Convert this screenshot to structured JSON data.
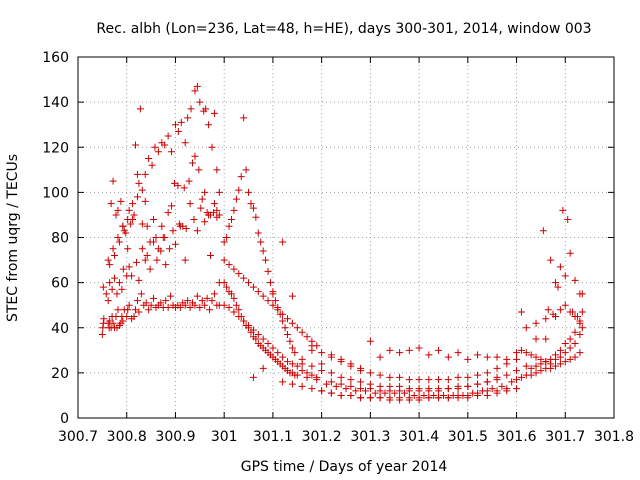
{
  "chart_data": {
    "type": "scatter",
    "title": "Rec. albh (Lon=236, Lat=48, h=HE), days 300-301, 2014, window 003",
    "xlabel": "GPS time / Days of year 2014",
    "ylabel": "STEC from uqrg / TECUs",
    "xlim": [
      300.7,
      301.8
    ],
    "ylim": [
      0,
      160
    ],
    "xticks": [
      "300.7",
      "300.8",
      "300.9",
      "301",
      "301.1",
      "301.2",
      "301.3",
      "301.4",
      "301.5",
      "301.6",
      "301.7",
      "301.8"
    ],
    "yticks": [
      "0",
      "20",
      "40",
      "60",
      "80",
      "100",
      "120",
      "140",
      "160"
    ],
    "grid": true,
    "grid_style": "dotted",
    "legend": "none",
    "marker": "plus",
    "color": "#cc0000",
    "series": [
      {
        "x": [
          300.75,
          300.751,
          300.752,
          300.753,
          300.762,
          300.764,
          300.765,
          300.768,
          300.77,
          300.772,
          300.775,
          300.778,
          300.78,
          300.782,
          300.785,
          300.788,
          300.79,
          300.792,
          300.795,
          300.8,
          300.802,
          300.805,
          300.81,
          300.815,
          300.818,
          300.822,
          300.825,
          300.83,
          300.835,
          300.84,
          300.845,
          300.85,
          300.855,
          300.86,
          300.865,
          300.87,
          300.875,
          300.88,
          300.885,
          300.89,
          300.895,
          300.9,
          300.905,
          300.91,
          300.915,
          300.92,
          300.925,
          300.93,
          300.935,
          300.94,
          300.945,
          300.95,
          300.955,
          300.96,
          300.965,
          300.97,
          300.975,
          300.98,
          300.985,
          300.99
        ],
        "y": [
          37,
          40,
          42,
          44,
          42,
          40,
          43,
          40,
          45,
          42,
          40,
          45,
          40,
          48,
          41,
          42,
          45,
          43,
          48,
          45,
          48,
          50,
          44,
          45,
          48,
          52,
          47,
          55,
          50,
          51,
          48,
          50,
          53,
          49,
          50,
          51,
          49,
          52,
          49,
          54,
          50,
          49,
          50,
          49,
          51,
          50,
          52,
          49,
          51,
          50,
          54,
          49,
          52,
          50,
          53,
          48,
          52,
          55,
          50,
          50
        ]
      },
      {
        "x": [
          300.752,
          300.758,
          300.762,
          300.765,
          300.77,
          300.775,
          300.78,
          300.785,
          300.79,
          300.793,
          300.8,
          300.805,
          300.81,
          300.82,
          300.825,
          300.832,
          300.838,
          300.842,
          300.848,
          300.855,
          300.862,
          300.87,
          300.875,
          300.88,
          300.888,
          300.895,
          300.9,
          300.908,
          300.915,
          300.92,
          300.93,
          300.938,
          300.945,
          300.952,
          300.96,
          300.965,
          300.972,
          300.98,
          300.985,
          300.99
        ],
        "y": [
          58,
          55,
          52,
          60,
          57,
          62,
          55,
          60,
          57,
          66,
          63,
          67,
          63,
          69,
          61,
          75,
          70,
          72,
          66,
          78,
          70,
          74,
          80,
          68,
          75,
          83,
          77,
          86,
          85,
          70,
          95,
          88,
          83,
          93,
          87,
          91,
          90,
          95,
          92,
          90
        ]
      },
      {
        "x": [
          300.762,
          300.765,
          300.772,
          300.775,
          300.782,
          300.785,
          300.792,
          300.795,
          300.802,
          300.805,
          300.812,
          300.815,
          300.822,
          300.825,
          300.832,
          300.838,
          300.845,
          300.852,
          300.858,
          300.865,
          300.872,
          300.878,
          300.885,
          300.892,
          300.9,
          300.906,
          300.912,
          300.92,
          300.925,
          300.932,
          300.94,
          300.945,
          300.95,
          300.958,
          300.962,
          300.968,
          300.975,
          300.98,
          300.985,
          300.99
        ],
        "y": [
          70,
          68,
          75,
          72,
          80,
          78,
          85,
          83,
          88,
          92,
          95,
          90,
          98,
          104,
          101,
          108,
          115,
          112,
          120,
          118,
          122,
          121,
          125,
          118,
          130,
          127,
          131,
          122,
          133,
          137,
          145,
          147,
          140,
          136,
          137,
          130,
          120,
          135,
          110,
          100
        ]
      },
      {
        "x": [
          300.768,
          300.772,
          300.778,
          300.782,
          300.788,
          300.792,
          300.798,
          300.802,
          300.808,
          300.812,
          300.818,
          300.822,
          300.828,
          300.832,
          300.838,
          300.842,
          300.848,
          300.855,
          300.86,
          300.865,
          300.872,
          300.878,
          300.885,
          300.892,
          300.898,
          300.905,
          300.91,
          300.918,
          300.922,
          300.928,
          300.935,
          300.94,
          300.948,
          300.955,
          300.96,
          300.968,
          300.972,
          300.978,
          300.985,
          300.99
        ],
        "y": [
          95,
          105,
          90,
          92,
          96,
          85,
          82,
          75,
          86,
          88,
          121,
          108,
          137,
          86,
          96,
          85,
          78,
          88,
          80,
          75,
          85,
          80,
          91,
          94,
          104,
          103,
          85,
          102,
          84,
          105,
          113,
          116,
          110,
          97,
          100,
          90,
          72,
          91,
          89,
          60
        ]
      },
      {
        "x": [
          301.0,
          301.005,
          301.01,
          301.015,
          301.02,
          301.025,
          301.03,
          301.035,
          301.04,
          301.045,
          301.05,
          301.055,
          301.06,
          301.065,
          301.07,
          301.075,
          301.08,
          301.085,
          301.09,
          301.095,
          301.1,
          301.105,
          301.11,
          301.115,
          301.12,
          301.125,
          301.13,
          301.135,
          301.14,
          301.145
        ],
        "y": [
          60,
          58,
          56,
          55,
          53,
          50,
          48,
          45,
          43,
          41,
          40,
          38,
          36,
          35,
          33,
          32,
          31,
          30,
          29,
          28,
          27,
          26,
          25,
          24,
          23,
          22,
          21,
          20,
          20,
          19
        ]
      },
      {
        "x": [
          301.0,
          301.005,
          301.01,
          301.015,
          301.02,
          301.025,
          301.03,
          301.035,
          301.04,
          301.045,
          301.05,
          301.055,
          301.06,
          301.065,
          301.07,
          301.075,
          301.08,
          301.085,
          301.09,
          301.095,
          301.1,
          301.105,
          301.11,
          301.115,
          301.12,
          301.125,
          301.13,
          301.135,
          301.14,
          301.145
        ],
        "y": [
          78,
          80,
          85,
          88,
          92,
          97,
          101,
          107,
          133,
          110,
          100,
          95,
          93,
          89,
          82,
          78,
          74,
          70,
          65,
          60,
          55,
          52,
          49,
          46,
          43,
          40,
          37,
          34,
          31,
          29
        ]
      },
      {
        "x": [
          301.0,
          301.01,
          301.02,
          301.03,
          301.04,
          301.05,
          301.06,
          301.07,
          301.08,
          301.09,
          301.1,
          301.11,
          301.12,
          301.13,
          301.14,
          301.15,
          301.16,
          301.17,
          301.18,
          301.19
        ],
        "y": [
          50,
          49,
          47,
          45,
          43,
          41,
          39,
          37,
          35,
          33,
          31,
          29,
          27,
          25,
          24,
          23,
          21,
          20,
          19,
          18
        ]
      },
      {
        "x": [
          301.0,
          301.01,
          301.02,
          301.03,
          301.04,
          301.05,
          301.06,
          301.07,
          301.08,
          301.09,
          301.1,
          301.11,
          301.12,
          301.13,
          301.14,
          301.15,
          301.16,
          301.17,
          301.18,
          301.19
        ],
        "y": [
          70,
          68,
          66,
          64,
          62,
          60,
          58,
          56,
          54,
          52,
          50,
          48,
          46,
          44,
          42,
          40,
          38,
          36,
          34,
          32
        ]
      },
      {
        "x": [
          301.06,
          301.08,
          301.1,
          301.12,
          301.14,
          301.16,
          301.18,
          301.2,
          301.22,
          301.24,
          301.26,
          301.28,
          301.3,
          301.32,
          301.34,
          301.36,
          301.38,
          301.4,
          301.42,
          301.44,
          301.46,
          301.48,
          301.5,
          301.52,
          301.54,
          301.56,
          301.58
        ],
        "y": [
          18,
          22,
          56,
          78,
          54,
          26,
          32,
          24,
          28,
          26,
          24,
          22,
          34,
          27,
          30,
          29,
          30,
          31,
          28,
          30,
          27,
          29,
          26,
          28,
          27,
          27,
          26
        ]
      },
      {
        "x": [
          301.12,
          301.14,
          301.16,
          301.18,
          301.2,
          301.22,
          301.24,
          301.26,
          301.28,
          301.3,
          301.32,
          301.34,
          301.36,
          301.38,
          301.4,
          301.42,
          301.44,
          301.46,
          301.48,
          301.5,
          301.52,
          301.54,
          301.56,
          301.58,
          301.6
        ],
        "y": [
          16,
          15,
          14,
          13,
          12,
          11,
          10,
          10,
          9,
          9,
          9,
          9,
          9,
          9,
          9,
          9,
          9,
          9,
          9,
          9,
          10,
          10,
          11,
          12,
          13
        ]
      },
      {
        "x": [
          301.15,
          301.17,
          301.19,
          301.21,
          301.23,
          301.25,
          301.27,
          301.29,
          301.31,
          301.33,
          301.35,
          301.37,
          301.39,
          301.41,
          301.43,
          301.45,
          301.47,
          301.49,
          301.51,
          301.53,
          301.55,
          301.57,
          301.59
        ],
        "y": [
          19,
          18,
          17,
          15,
          14,
          13,
          12,
          12,
          11,
          11,
          11,
          11,
          10,
          10,
          10,
          10,
          10,
          10,
          11,
          12,
          13,
          14,
          16
        ]
      },
      {
        "x": [
          301.16,
          301.18,
          301.2,
          301.22,
          301.24,
          301.26,
          301.28,
          301.3,
          301.32,
          301.34,
          301.36,
          301.38,
          301.4,
          301.42,
          301.44,
          301.46,
          301.48,
          301.5,
          301.52,
          301.54,
          301.56,
          301.58,
          301.6,
          301.62
        ],
        "y": [
          24,
          23,
          21,
          20,
          18,
          17,
          16,
          15,
          14,
          14,
          14,
          13,
          13,
          13,
          13,
          13,
          14,
          14,
          15,
          16,
          17,
          19,
          21,
          23
        ]
      },
      {
        "x": [
          301.18,
          301.2,
          301.22,
          301.24,
          301.26,
          301.28,
          301.3,
          301.32,
          301.34,
          301.36,
          301.38,
          301.4,
          301.42,
          301.44,
          301.46,
          301.48,
          301.5,
          301.52,
          301.54,
          301.56,
          301.58,
          301.6
        ],
        "y": [
          30,
          29,
          27,
          25,
          23,
          21,
          20,
          19,
          18,
          18,
          17,
          17,
          17,
          17,
          17,
          18,
          18,
          19,
          20,
          22,
          24,
          26
        ]
      },
      {
        "x": [
          301.2,
          301.22,
          301.24,
          301.26,
          301.28,
          301.3,
          301.32,
          301.34,
          301.36,
          301.38,
          301.4,
          301.42,
          301.44,
          301.46,
          301.48,
          301.5,
          301.52,
          301.54,
          301.56,
          301.58
        ],
        "y": [
          12,
          11,
          10,
          10,
          9,
          9,
          9,
          8,
          8,
          8,
          8,
          9,
          9,
          9,
          10,
          10,
          11,
          12,
          12,
          13
        ]
      },
      {
        "x": [
          301.22,
          301.24,
          301.26,
          301.28,
          301.3,
          301.32,
          301.34,
          301.36,
          301.38,
          301.4,
          301.42,
          301.44,
          301.46,
          301.48,
          301.5,
          301.52,
          301.54,
          301.56
        ],
        "y": [
          16,
          15,
          14,
          13,
          13,
          12,
          12,
          12,
          12,
          12,
          12,
          12,
          13,
          13,
          14,
          15,
          16,
          18
        ]
      },
      {
        "x": [
          301.6,
          301.61,
          301.62,
          301.63,
          301.64,
          301.65,
          301.66,
          301.67,
          301.68,
          301.69,
          301.7,
          301.71,
          301.72,
          301.73,
          301.735
        ],
        "y": [
          29,
          30,
          29,
          28,
          27,
          26,
          25,
          24,
          26,
          27,
          29,
          31,
          33,
          37,
          40
        ]
      },
      {
        "x": [
          301.6,
          301.61,
          301.62,
          301.63,
          301.64,
          301.65,
          301.66,
          301.67,
          301.68,
          301.69,
          301.7,
          301.71,
          301.72,
          301.73
        ],
        "y": [
          17,
          18,
          19,
          19,
          20,
          21,
          22,
          22,
          23,
          24,
          25,
          26,
          27,
          29
        ]
      },
      {
        "x": [
          301.63,
          301.64,
          301.65,
          301.66,
          301.67,
          301.68,
          301.69,
          301.7,
          301.71,
          301.72,
          301.73
        ],
        "y": [
          22,
          23,
          24,
          25,
          26,
          28,
          30,
          33,
          35,
          38,
          42
        ]
      },
      {
        "x": [
          301.61,
          301.64,
          301.655,
          301.66,
          301.665,
          301.67,
          301.675,
          301.68,
          301.685,
          301.69,
          301.695,
          301.7,
          301.705,
          301.71,
          301.715,
          301.72,
          301.725,
          301.73,
          301.735
        ],
        "y": [
          47,
          35,
          83,
          35,
          48,
          70,
          46,
          60,
          58,
          67,
          92,
          63,
          88,
          73,
          47,
          61,
          45,
          55,
          47
        ]
      },
      {
        "x": [
          301.62,
          301.64,
          301.66,
          301.68,
          301.69,
          301.7,
          301.71,
          301.72,
          301.73,
          301.735
        ],
        "y": [
          40,
          42,
          44,
          45,
          48,
          50,
          47,
          45,
          43,
          55
        ]
      }
    ]
  }
}
